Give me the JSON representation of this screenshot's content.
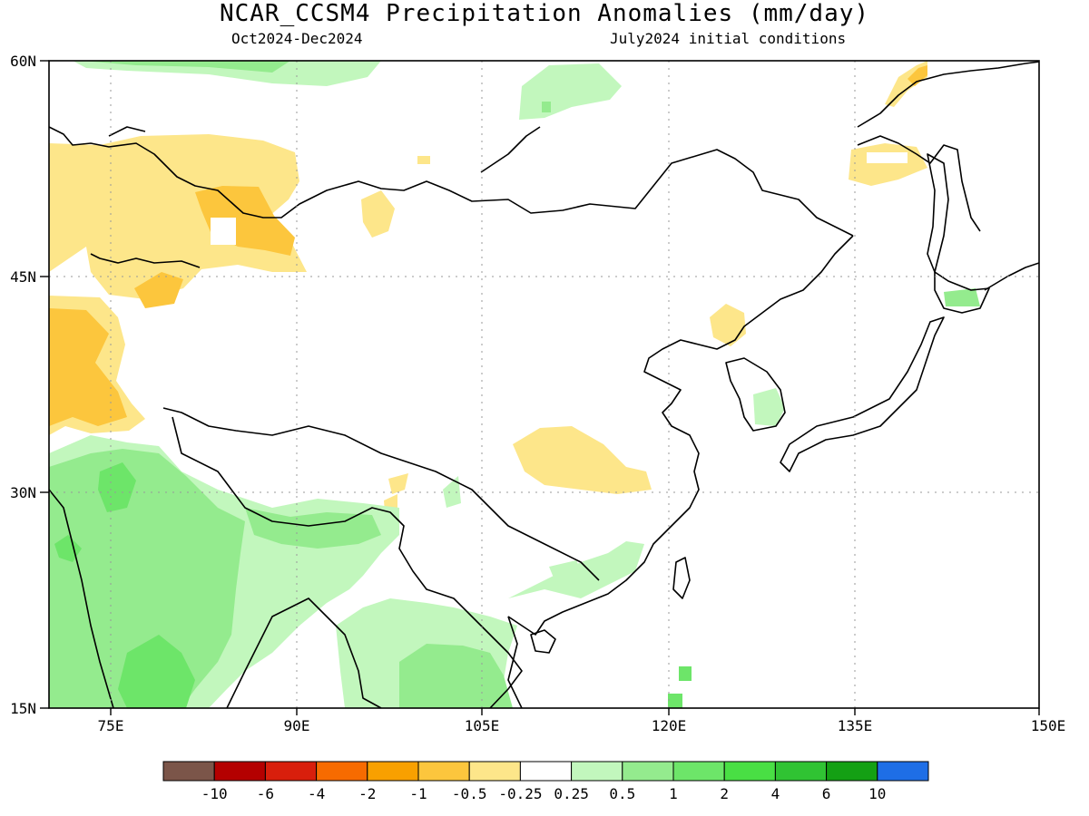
{
  "header": {
    "title": "NCAR_CCSM4 Precipitation Anomalies (mm/day)",
    "season": "Oct2024-Dec2024",
    "initial": "July2024 initial conditions"
  },
  "map": {
    "lat_labels": [
      "60N",
      "45N",
      "30N",
      "15N"
    ],
    "lon_labels": [
      "75E",
      "90E",
      "105E",
      "120E",
      "135E",
      "150E"
    ]
  },
  "legend": {
    "colors": [
      "#7b5549",
      "#b40000",
      "#d81f0c",
      "#f76b00",
      "#f8a000",
      "#fcc63d",
      "#fde68a",
      "#ffffff",
      "#c2f7bd",
      "#94eb8e",
      "#6de569",
      "#49df44",
      "#30c333",
      "#14a014",
      "#1e6ee6"
    ],
    "labels": [
      "-10",
      "-6",
      "-4",
      "-2",
      "-1",
      "-0.5",
      "-0.25",
      "0.25",
      "0.5",
      "1",
      "2",
      "4",
      "6",
      "10"
    ]
  }
}
